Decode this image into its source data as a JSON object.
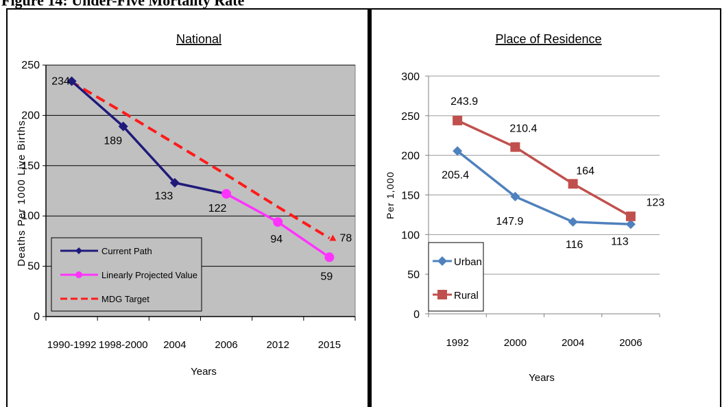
{
  "caption": "Figure 14: Under-Five Mortality Rate",
  "colors": {
    "current_path": "#1f1a7a",
    "projected": "#ff33ff",
    "mdg_target": "#ff1a1a",
    "urban": "#4f81bd",
    "rural": "#c0504d",
    "plot_bg_national": "#c0c0c0"
  },
  "chart_data": [
    {
      "type": "line",
      "title": "National",
      "xlabel": "Years",
      "ylabel": "Deaths Per 1000 Live Births",
      "categories": [
        "1990-1992",
        "1998-2000",
        "2004",
        "2006",
        "2012",
        "2015"
      ],
      "ylim": [
        0,
        250
      ],
      "yticks": [
        0,
        50,
        100,
        150,
        200,
        250
      ],
      "grid": true,
      "legend_position": "bottom-left",
      "series": [
        {
          "name": "Current Path",
          "values": [
            234,
            189,
            133,
            122,
            null,
            null
          ],
          "labels": [
            "234",
            "189",
            "133",
            "122",
            "",
            ""
          ],
          "marker": "diamond"
        },
        {
          "name": "Linearly Projected Value",
          "values": [
            null,
            null,
            null,
            122,
            94,
            59
          ],
          "labels": [
            "",
            "",
            "",
            "",
            "94",
            "59"
          ],
          "marker": "circle"
        },
        {
          "name": "MDG Target",
          "values": [
            234,
            203,
            172,
            141,
            109,
            78
          ],
          "labels": [
            "",
            "",
            "",
            "",
            "",
            "78"
          ],
          "marker": "triangle",
          "dashed": true
        }
      ]
    },
    {
      "type": "line",
      "title": "Place of Residence",
      "xlabel": "Years",
      "ylabel": "Per 1,000",
      "categories": [
        "1992",
        "2000",
        "2004",
        "2006"
      ],
      "ylim": [
        0,
        300
      ],
      "yticks": [
        0,
        50,
        100,
        150,
        200,
        250,
        300
      ],
      "grid": true,
      "legend_position": "bottom-left",
      "series": [
        {
          "name": "Urban",
          "values": [
            205.4,
            147.9,
            116,
            113
          ],
          "labels": [
            "205.4",
            "147.9",
            "116",
            "113"
          ],
          "marker": "diamond"
        },
        {
          "name": "Rural",
          "values": [
            243.9,
            210.4,
            164,
            123
          ],
          "labels": [
            "243.9",
            "210.4",
            "164",
            "123"
          ],
          "marker": "square"
        }
      ]
    }
  ]
}
